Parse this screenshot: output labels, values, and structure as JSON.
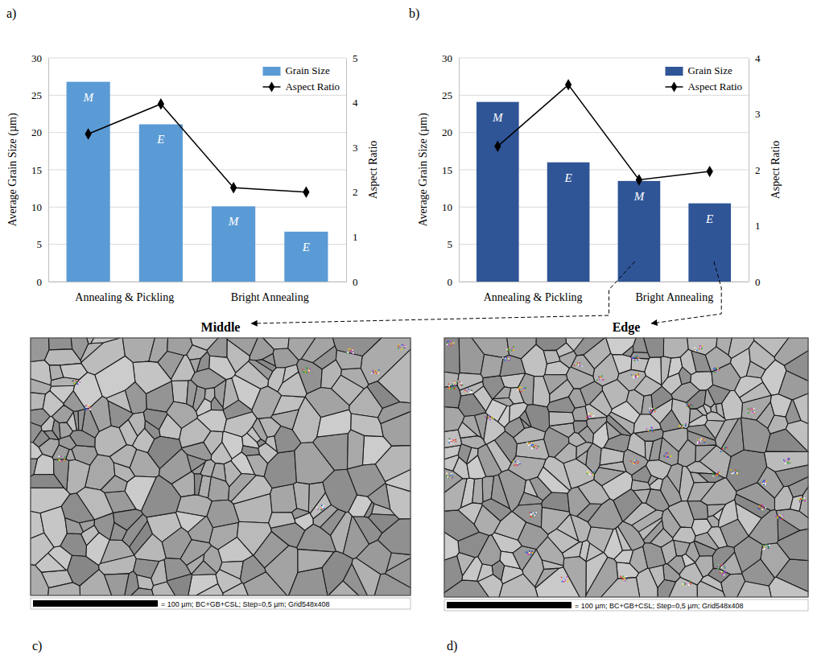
{
  "chart_data": [
    {
      "type": "bar",
      "panel_label": "a)",
      "categories": [
        "M",
        "E",
        "M",
        "E"
      ],
      "groups": [
        "Annealing & Pickling",
        "Bright Annealing"
      ],
      "series": [
        {
          "name": "Grain Size",
          "type": "bar",
          "color": "#5b9bd5",
          "values": [
            26.8,
            21.1,
            10.1,
            6.7
          ]
        },
        {
          "name": "Aspect Ratio",
          "type": "line",
          "color": "#000000",
          "marker": "diamond",
          "axis": "y2",
          "values": [
            3.3,
            3.97,
            2.1,
            2.0
          ]
        }
      ],
      "y_label": "Average Grain Size (µm)",
      "y2_label": "Aspect Ratio",
      "ylim": [
        0,
        30
      ],
      "yticks": [
        0,
        5,
        10,
        15,
        20,
        25,
        30
      ],
      "y2lim": [
        0,
        5
      ],
      "y2ticks": [
        0,
        1,
        2,
        3,
        4,
        5
      ],
      "grid": true,
      "legend": "top-right"
    },
    {
      "type": "bar",
      "panel_label": "b)",
      "categories": [
        "M",
        "E",
        "M",
        "E"
      ],
      "groups": [
        "Annealing & Pickling",
        "Bright Annealing"
      ],
      "series": [
        {
          "name": "Grain Size",
          "type": "bar",
          "color": "#2f5597",
          "values": [
            24.1,
            16.0,
            13.5,
            10.5
          ]
        },
        {
          "name": "Aspect Ratio",
          "type": "line",
          "color": "#000000",
          "marker": "diamond",
          "axis": "y2",
          "values": [
            2.42,
            3.52,
            1.82,
            1.97
          ]
        }
      ],
      "y_label": "Average Grain Size (µm)",
      "y2_label": "Aspect Ratio",
      "ylim": [
        0,
        30
      ],
      "yticks": [
        0,
        5,
        10,
        15,
        20,
        25,
        30
      ],
      "y2lim": [
        0,
        4
      ],
      "y2ticks": [
        0,
        1,
        2,
        3,
        4
      ],
      "grid": true,
      "legend": "top-right"
    }
  ],
  "images": [
    {
      "panel_label": "c)",
      "title": "Middle",
      "caption": "= 100 µm; BC+GB+CSL; Step=0,5 µm; Grid548x408"
    },
    {
      "panel_label": "d)",
      "title": "Edge",
      "caption": "= 100 µm; BC+GB+CSL; Step=0,5 µm; Grid548x408"
    }
  ]
}
